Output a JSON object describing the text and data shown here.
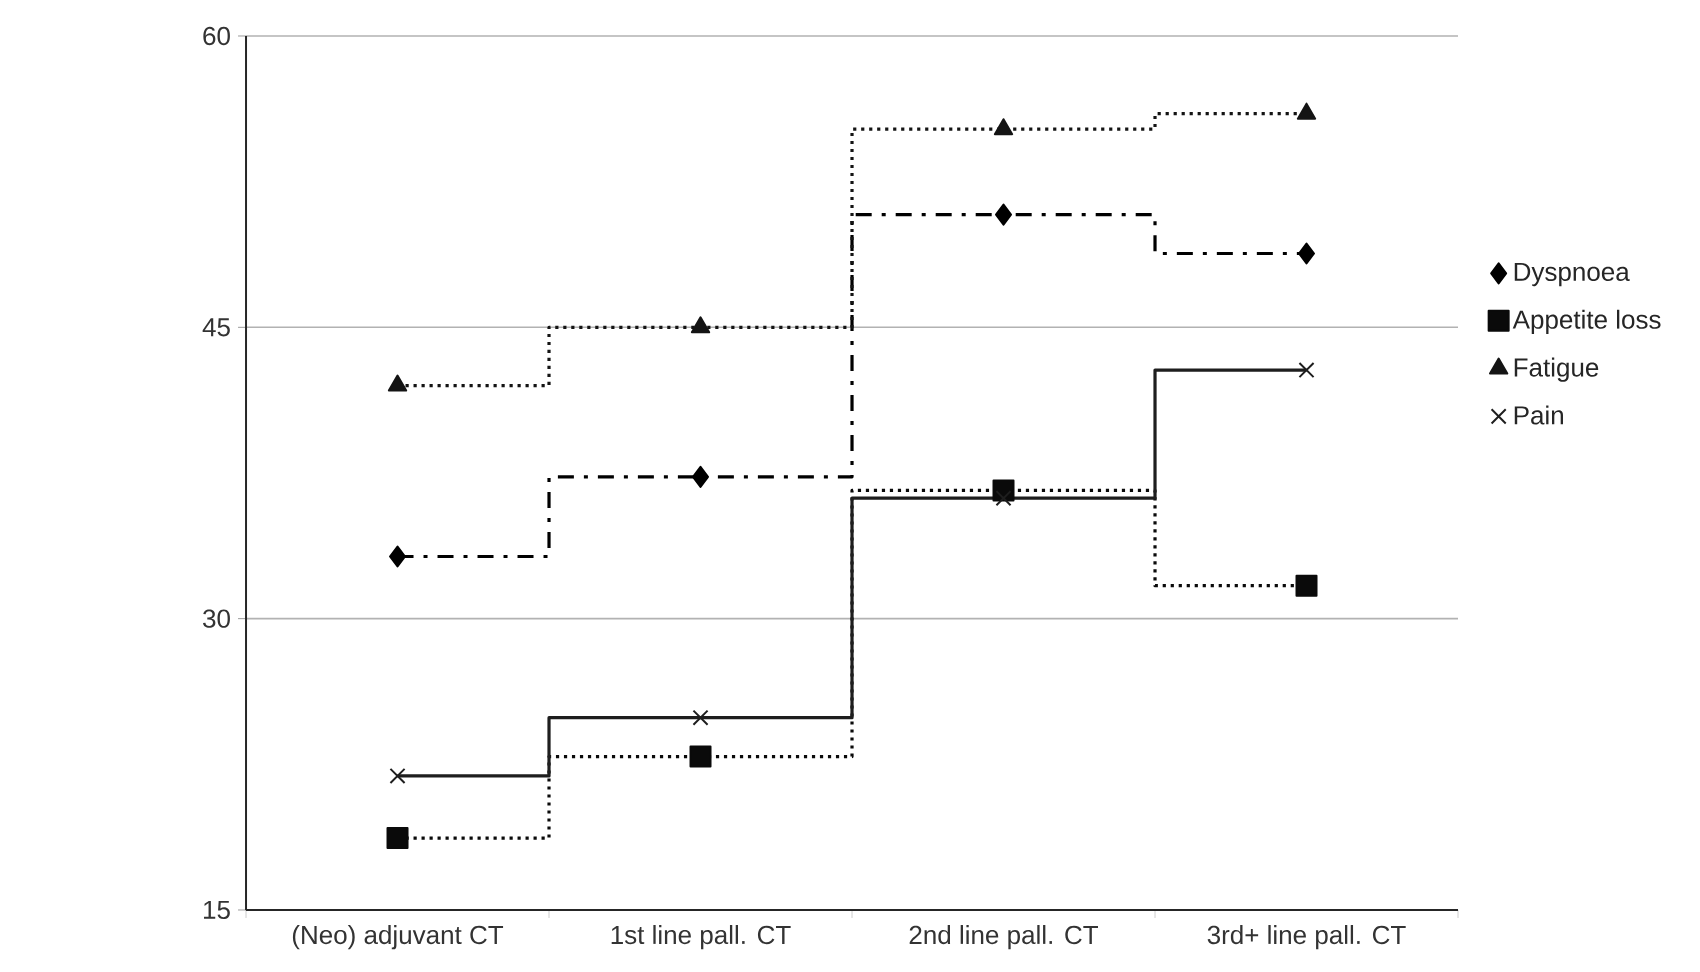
{
  "chart_data": {
    "type": "step",
    "categories": [
      "(Neo) adjuvant CT",
      "1st line pall. CT",
      "2nd line pall. CT",
      "3rd+ line pall. CT"
    ],
    "series": [
      {
        "name": "Dyspnoea",
        "color": "#000000",
        "marker": "diamond",
        "line_style": "dashdot",
        "values": [
          33.2,
          37.3,
          50.8,
          48.8
        ]
      },
      {
        "name": "Appetite loss",
        "color": "#0a0a0a",
        "marker": "square",
        "line_style": "dotted",
        "values": [
          18.7,
          22.9,
          36.6,
          31.7
        ]
      },
      {
        "name": "Fatigue",
        "color": "#141414",
        "marker": "triangle",
        "line_style": "dotted",
        "values": [
          42.0,
          45.0,
          55.2,
          56.0
        ]
      },
      {
        "name": "Pain",
        "color": "#1e1e1e",
        "marker": "cross",
        "line_style": "solid",
        "values": [
          21.9,
          24.9,
          36.2,
          42.8
        ]
      }
    ],
    "ylim": [
      15,
      60
    ],
    "yticks": [
      15,
      30,
      45,
      60
    ],
    "grid": "y",
    "legend": "right"
  }
}
